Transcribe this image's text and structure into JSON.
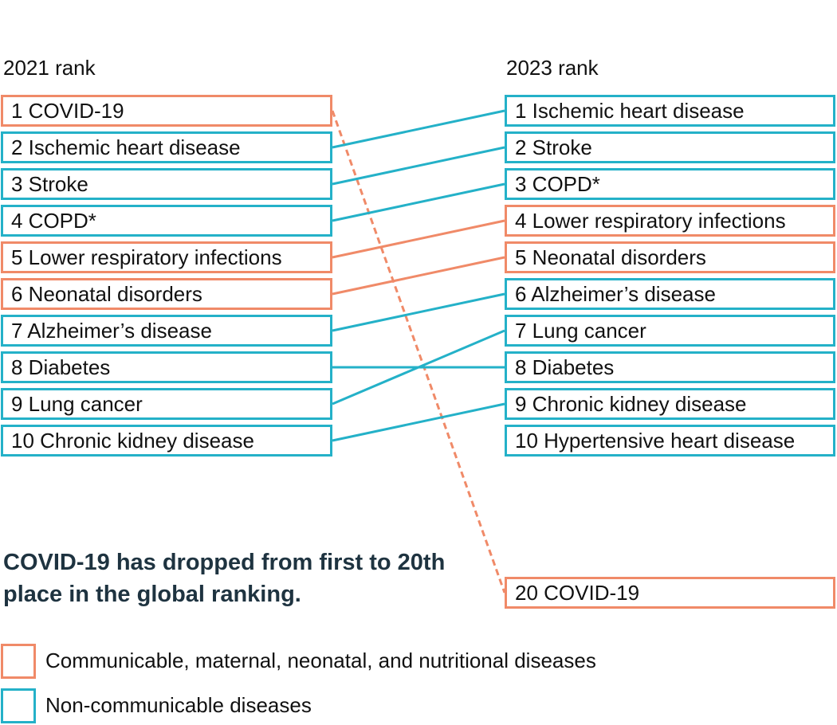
{
  "headers": {
    "left": "2021 rank",
    "right": "2023 rank"
  },
  "colors": {
    "cmnn": "#f08a68",
    "ncd": "#24b1c8"
  },
  "ranks_2021": [
    {
      "rank": 1,
      "label": "1 COVID-19",
      "category": "cmnn"
    },
    {
      "rank": 2,
      "label": "2 Ischemic heart disease",
      "category": "ncd"
    },
    {
      "rank": 3,
      "label": "3 Stroke",
      "category": "ncd"
    },
    {
      "rank": 4,
      "label": "4 COPD*",
      "category": "ncd"
    },
    {
      "rank": 5,
      "label": "5 Lower respiratory infections",
      "category": "cmnn"
    },
    {
      "rank": 6,
      "label": "6 Neonatal disorders",
      "category": "cmnn"
    },
    {
      "rank": 7,
      "label": "7 Alzheimer’s disease",
      "category": "ncd"
    },
    {
      "rank": 8,
      "label": "8 Diabetes",
      "category": "ncd"
    },
    {
      "rank": 9,
      "label": "9 Lung cancer",
      "category": "ncd"
    },
    {
      "rank": 10,
      "label": "10 Chronic kidney disease",
      "category": "ncd"
    }
  ],
  "ranks_2023": [
    {
      "rank": 1,
      "label": "1 Ischemic heart disease",
      "category": "ncd"
    },
    {
      "rank": 2,
      "label": "2 Stroke",
      "category": "ncd"
    },
    {
      "rank": 3,
      "label": "3 COPD*",
      "category": "ncd"
    },
    {
      "rank": 4,
      "label": "4 Lower respiratory infections",
      "category": "cmnn"
    },
    {
      "rank": 5,
      "label": "5 Neonatal disorders",
      "category": "cmnn"
    },
    {
      "rank": 6,
      "label": "6 Alzheimer’s disease",
      "category": "ncd"
    },
    {
      "rank": 7,
      "label": "7 Lung cancer",
      "category": "ncd"
    },
    {
      "rank": 8,
      "label": "8 Diabetes",
      "category": "ncd"
    },
    {
      "rank": 9,
      "label": "9 Chronic kidney disease",
      "category": "ncd"
    },
    {
      "rank": 10,
      "label": "10 Hypertensive heart disease",
      "category": "ncd"
    },
    {
      "rank": 20,
      "label": "20 COVID-19",
      "category": "cmnn"
    }
  ],
  "connections": [
    {
      "from": 1,
      "to": 20,
      "category": "cmnn",
      "style": "dashed"
    },
    {
      "from": 2,
      "to": 1,
      "category": "ncd",
      "style": "solid"
    },
    {
      "from": 3,
      "to": 2,
      "category": "ncd",
      "style": "solid"
    },
    {
      "from": 4,
      "to": 3,
      "category": "ncd",
      "style": "solid"
    },
    {
      "from": 5,
      "to": 4,
      "category": "cmnn",
      "style": "solid"
    },
    {
      "from": 6,
      "to": 5,
      "category": "cmnn",
      "style": "solid"
    },
    {
      "from": 7,
      "to": 6,
      "category": "ncd",
      "style": "solid"
    },
    {
      "from": 8,
      "to": 8,
      "category": "ncd",
      "style": "solid"
    },
    {
      "from": 9,
      "to": 7,
      "category": "ncd",
      "style": "solid"
    },
    {
      "from": 10,
      "to": 9,
      "category": "ncd",
      "style": "solid"
    }
  ],
  "callout": "COVID-19 has dropped from first to 20th place in the global ranking.",
  "legend": [
    {
      "label": "Communicable, maternal, neonatal, and nutritional diseases",
      "category": "cmnn"
    },
    {
      "label": "Non-communicable diseases",
      "category": "ncd"
    }
  ]
}
